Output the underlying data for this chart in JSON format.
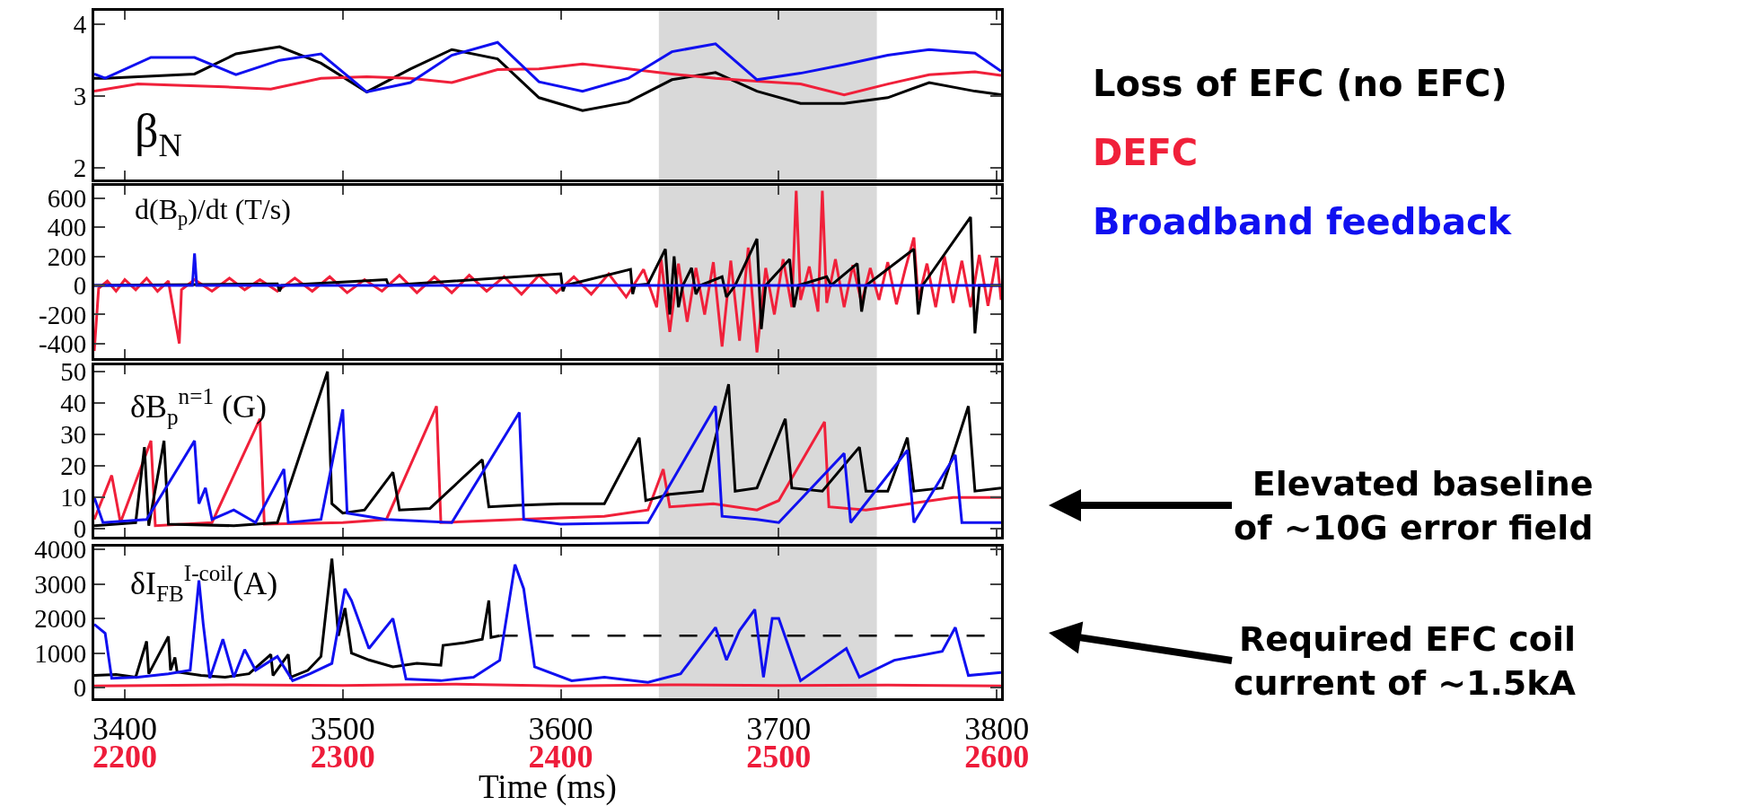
{
  "chart_data": [
    {
      "type": "line",
      "title": "β$_{N}$",
      "xlim": [
        3386,
        3802
      ],
      "xticks": [
        3400,
        3500,
        3600,
        3700,
        3800
      ],
      "ylim": [
        1.84,
        4.19
      ],
      "yticks": [
        2,
        3,
        4
      ],
      "tick_labels": "y",
      "legend": "right",
      "grid": false,
      "bands": [
        {
          "axis": "x",
          "from": 3645,
          "to": 3745,
          "color": "#d9d9d9"
        }
      ],
      "series": [
        {
          "name": "Loss of EFC (no EFC)",
          "color": "#000000",
          "x": [
            3386,
            3391,
            3432,
            3451,
            3471,
            3490,
            3511,
            3531,
            3550,
            3571,
            3590,
            3610,
            3631,
            3651,
            3671,
            3690,
            3710,
            3730,
            3750,
            3769,
            3790,
            3802
          ],
          "values": [
            3.25,
            3.25,
            3.31,
            3.59,
            3.69,
            3.46,
            3.06,
            3.38,
            3.65,
            3.52,
            2.98,
            2.8,
            2.92,
            3.23,
            3.33,
            3.07,
            2.9,
            2.9,
            2.98,
            3.19,
            3.07,
            3.02
          ]
        },
        {
          "name": "DEFC",
          "color": "#f0203a",
          "x": [
            3386,
            3406,
            3427,
            3446,
            3467,
            3490,
            3511,
            3531,
            3550,
            3571,
            3590,
            3610,
            3631,
            3651,
            3671,
            3690,
            3710,
            3730,
            3750,
            3769,
            3790,
            3802
          ],
          "values": [
            3.07,
            3.17,
            3.15,
            3.13,
            3.1,
            3.25,
            3.27,
            3.25,
            3.19,
            3.37,
            3.38,
            3.45,
            3.38,
            3.31,
            3.25,
            3.21,
            3.17,
            3.02,
            3.17,
            3.3,
            3.34,
            3.29
          ]
        },
        {
          "name": "Broadband feedback",
          "color": "#1010f0",
          "x": [
            3386,
            3391,
            3412,
            3432,
            3451,
            3471,
            3490,
            3511,
            3531,
            3550,
            3571,
            3590,
            3610,
            3631,
            3651,
            3671,
            3690,
            3710,
            3730,
            3750,
            3769,
            3790,
            3802
          ],
          "values": [
            3.31,
            3.25,
            3.54,
            3.54,
            3.3,
            3.5,
            3.59,
            3.06,
            3.19,
            3.57,
            3.75,
            3.2,
            3.07,
            3.25,
            3.62,
            3.73,
            3.23,
            3.32,
            3.44,
            3.57,
            3.65,
            3.6,
            3.35
          ]
        }
      ]
    },
    {
      "type": "line",
      "title": "d(B$_{p}$)/dt (T/s)",
      "xlim": [
        3386,
        3802
      ],
      "xticks": [
        3400,
        3500,
        3600,
        3700,
        3800
      ],
      "ylim": [
        -500,
        685
      ],
      "yticks": [
        -400,
        -200,
        0,
        200,
        400,
        600
      ],
      "tick_labels": "y",
      "grid": false,
      "bands": [
        {
          "axis": "x",
          "from": 3645,
          "to": 3745,
          "color": "#d9d9d9"
        }
      ],
      "series": [
        {
          "color": "#f0203a",
          "x": [
            3386,
            3388,
            3392,
            3396,
            3400,
            3405,
            3410,
            3415,
            3420,
            3425,
            3426,
            3432,
            3440,
            3448,
            3455,
            3462,
            3470,
            3478,
            3486,
            3494,
            3502,
            3510,
            3518,
            3526,
            3534,
            3542,
            3550,
            3558,
            3566,
            3574,
            3582,
            3590,
            3598,
            3606,
            3614,
            3622,
            3630,
            3638,
            3644,
            3646,
            3650,
            3654,
            3658,
            3662,
            3666,
            3670,
            3674,
            3678,
            3682,
            3686,
            3690,
            3694,
            3698,
            3702,
            3706,
            3708,
            3710,
            3714,
            3718,
            3720,
            3722,
            3726,
            3730,
            3734,
            3738,
            3742,
            3746,
            3750,
            3754,
            3758,
            3762,
            3764,
            3768,
            3772,
            3776,
            3780,
            3784,
            3788,
            3792,
            3796,
            3800,
            3802
          ],
          "values": [
            -450,
            -20,
            30,
            -40,
            40,
            -30,
            50,
            -40,
            30,
            -400,
            -30,
            40,
            -40,
            50,
            -30,
            40,
            -40,
            50,
            -40,
            60,
            -50,
            40,
            -40,
            70,
            -50,
            60,
            -50,
            70,
            -40,
            60,
            -60,
            70,
            -50,
            60,
            -60,
            80,
            -80,
            110,
            -150,
            180,
            -320,
            150,
            -250,
            120,
            -200,
            160,
            -420,
            170,
            -380,
            260,
            -460,
            120,
            -200,
            180,
            -150,
            650,
            -100,
            130,
            -180,
            650,
            -120,
            180,
            -150,
            140,
            -120,
            120,
            -100,
            160,
            -130,
            110,
            330,
            -100,
            150,
            -150,
            200,
            -120,
            170,
            -150,
            210,
            -140,
            200,
            -100
          ]
        },
        {
          "color": "#000000",
          "x": [
            3386,
            3470,
            3471,
            3472,
            3520,
            3521,
            3600,
            3601,
            3602,
            3632,
            3633,
            3634,
            3640,
            3648,
            3650,
            3652,
            3654,
            3656,
            3660,
            3662,
            3664,
            3674,
            3676,
            3680,
            3690,
            3692,
            3694,
            3705,
            3707,
            3709,
            3722,
            3724,
            3736,
            3738,
            3740,
            3762,
            3764,
            3766,
            3788,
            3790,
            3792,
            3802
          ],
          "values": [
            0,
            10,
            -40,
            0,
            40,
            0,
            80,
            -40,
            0,
            110,
            -60,
            0,
            10,
            250,
            -200,
            200,
            -150,
            0,
            120,
            -60,
            0,
            60,
            -80,
            0,
            320,
            -300,
            0,
            180,
            -150,
            0,
            60,
            0,
            150,
            -180,
            0,
            250,
            -200,
            0,
            470,
            -330,
            0,
            0
          ]
        },
        {
          "color": "#1010f0",
          "x": [
            3386,
            3431,
            3432,
            3433,
            3802
          ],
          "values": [
            0,
            0,
            220,
            0,
            0
          ]
        }
      ]
    },
    {
      "type": "line",
      "title": "δB$_{p}$$^{n=1}$ (G)",
      "xlim": [
        3386,
        3802
      ],
      "xticks": [
        3400,
        3500,
        3600,
        3700,
        3800
      ],
      "ylim": [
        -2.5,
        52
      ],
      "yticks": [
        0,
        10,
        20,
        30,
        40,
        50
      ],
      "tick_labels": "y",
      "grid": false,
      "annotations": [
        "Elevated baseline\nof ~10G error field"
      ],
      "bands": [
        {
          "axis": "x",
          "from": 3645,
          "to": 3745,
          "color": "#d9d9d9"
        }
      ],
      "series": [
        {
          "color": "#f0203a",
          "x": [
            3386,
            3394,
            3398,
            3412,
            3414,
            3440,
            3462,
            3464,
            3500,
            3520,
            3543,
            3545,
            3580,
            3620,
            3640,
            3647,
            3650,
            3670,
            3690,
            3700,
            3721,
            3723,
            3740,
            3760,
            3780,
            3802
          ],
          "values": [
            3,
            17,
            2,
            28,
            1,
            2,
            35,
            1.5,
            2,
            3,
            39,
            2,
            3,
            4,
            6,
            19,
            7,
            8,
            6,
            9,
            34,
            7,
            6,
            8,
            10,
            10
          ]
        },
        {
          "color": "#000000",
          "x": [
            3386,
            3405,
            3409,
            3411,
            3418,
            3420,
            3450,
            3470,
            3493,
            3495,
            3500,
            3510,
            3523,
            3526,
            3540,
            3564,
            3567,
            3580,
            3600,
            3620,
            3636,
            3639,
            3650,
            3665,
            3677,
            3680,
            3690,
            3703,
            3706,
            3720,
            3737,
            3740,
            3750,
            3759,
            3762,
            3775,
            3787,
            3790,
            3802
          ],
          "values": [
            1,
            2,
            26,
            1,
            28,
            1.5,
            1,
            2,
            50,
            8,
            5,
            6,
            18,
            6,
            6.5,
            22,
            7,
            7.5,
            8,
            8,
            29,
            9,
            11,
            12,
            46,
            12,
            13,
            35,
            13,
            12,
            26,
            12,
            12,
            29,
            12,
            13,
            39,
            12,
            13
          ]
        },
        {
          "color": "#1010f0",
          "x": [
            3386,
            3390,
            3410,
            3432,
            3434,
            3437,
            3440,
            3450,
            3460,
            3473,
            3475,
            3490,
            3500,
            3502,
            3520,
            3550,
            3581,
            3583,
            3600,
            3640,
            3671,
            3674,
            3690,
            3700,
            3730,
            3733,
            3759,
            3762,
            3781,
            3784,
            3802
          ],
          "values": [
            10,
            2,
            3,
            28,
            8,
            13,
            3,
            6,
            2,
            19,
            2,
            3,
            38,
            5,
            3,
            2,
            37,
            3,
            1.5,
            2,
            39,
            4,
            3,
            2,
            24,
            2,
            25,
            2,
            23.5,
            2,
            2
          ]
        }
      ]
    },
    {
      "type": "line",
      "title": "δI$_{FB}$$^{I-coil}$(A)",
      "xlabel": "Time (ms)",
      "xlim": [
        3386,
        3802
      ],
      "xticks": [
        3400,
        3500,
        3600,
        3700,
        3800
      ],
      "x2lim": [
        2186,
        2602
      ],
      "x2ticks": [
        2200,
        2300,
        2400,
        2500,
        2600
      ],
      "ylim": [
        -310,
        4080
      ],
      "yticks": [
        0,
        1000,
        2000,
        3000,
        4000
      ],
      "grid": false,
      "annotations": [
        "Required EFC coil\ncurrent of ~1.5kA"
      ],
      "bands": [
        {
          "axis": "x",
          "from": 3645,
          "to": 3745,
          "color": "#d9d9d9"
        }
      ],
      "series": [
        {
          "color": "#f0203a",
          "x": [
            3386,
            3450,
            3500,
            3550,
            3600,
            3650,
            3700,
            3750,
            3802
          ],
          "values": [
            50,
            80,
            60,
            100,
            50,
            80,
            60,
            70,
            50
          ]
        },
        {
          "color": "#000000",
          "x": [
            3386,
            3396,
            3405,
            3410,
            3411,
            3420,
            3421,
            3423,
            3424,
            3435,
            3446,
            3457,
            3467,
            3468,
            3475,
            3476,
            3484,
            3490,
            3495,
            3498,
            3501,
            3504,
            3512,
            3523,
            3534,
            3545,
            3546,
            3556,
            3564,
            3567,
            3568,
            3572
          ],
          "values": [
            350,
            380,
            300,
            1340,
            400,
            1480,
            500,
            870,
            450,
            350,
            300,
            400,
            960,
            350,
            960,
            300,
            500,
            900,
            3730,
            1500,
            2300,
            1000,
            800,
            600,
            700,
            650,
            1220,
            1300,
            1400,
            2520,
            1450,
            1500
          ]
        },
        {
          "color": "#000000",
          "line_style": "dashed",
          "x": [
            3572,
            3802
          ],
          "values": [
            1500,
            1500
          ]
        },
        {
          "color": "#1010f0",
          "x": [
            3386,
            3391,
            3394,
            3406,
            3420,
            3430,
            3434,
            3436,
            3439,
            3445,
            3450,
            3455,
            3460,
            3470,
            3477,
            3485,
            3495,
            3501,
            3504,
            3512,
            3523,
            3529,
            3545,
            3560,
            3572,
            3579,
            3583,
            3588,
            3605,
            3620,
            3640,
            3655,
            3671,
            3676,
            3682,
            3689,
            3693,
            3697,
            3700,
            3710,
            3731,
            3737,
            3753,
            3775,
            3781,
            3787,
            3802
          ],
          "values": [
            1830,
            1570,
            270,
            300,
            400,
            500,
            3100,
            1830,
            270,
            1400,
            300,
            1100,
            500,
            900,
            200,
            400,
            700,
            2860,
            2520,
            1130,
            2000,
            250,
            200,
            300,
            790,
            3560,
            2860,
            600,
            200,
            300,
            150,
            400,
            1740,
            800,
            1650,
            2260,
            300,
            2000,
            2000,
            200,
            1130,
            300,
            790,
            1050,
            1740,
            350,
            440
          ]
        }
      ]
    }
  ]
}
